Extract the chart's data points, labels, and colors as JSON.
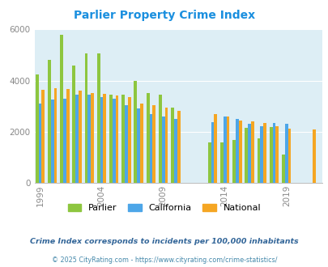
{
  "title": "Parlier Property Crime Index",
  "title_color": "#1a8fdf",
  "years": [
    1999,
    2000,
    2001,
    2002,
    2003,
    2004,
    2005,
    2006,
    2007,
    2008,
    2009,
    2010,
    2013,
    2014,
    2015,
    2016,
    2017,
    2018,
    2019,
    2021
  ],
  "parlier": [
    4250,
    4800,
    5800,
    4600,
    5050,
    5050,
    3450,
    3450,
    4000,
    3500,
    3450,
    2950,
    1580,
    1580,
    1680,
    2150,
    1750,
    2180,
    1100,
    null
  ],
  "california": [
    3100,
    3250,
    3300,
    3450,
    3450,
    3350,
    3300,
    3050,
    2900,
    2680,
    2600,
    2500,
    2380,
    2600,
    2500,
    2300,
    2200,
    2350,
    2300,
    null
  ],
  "national": [
    3650,
    3700,
    3680,
    3600,
    3500,
    3480,
    3430,
    3350,
    3100,
    3030,
    2950,
    2820,
    2700,
    2580,
    2450,
    2400,
    2350,
    2200,
    2120,
    2100
  ],
  "parlier_color": "#8dc63f",
  "california_color": "#4da6e8",
  "national_color": "#f5a623",
  "background_color": "#ddeef5",
  "ylim": [
    0,
    6000
  ],
  "yticks": [
    0,
    2000,
    4000,
    6000
  ],
  "xtick_labels": [
    "1999",
    "2004",
    "2009",
    "2014",
    "2019"
  ],
  "xtick_positions": [
    1999,
    2004,
    2009,
    2014,
    2019
  ],
  "subtitle": "Crime Index corresponds to incidents per 100,000 inhabitants",
  "footer": "© 2025 CityRating.com - https://www.cityrating.com/crime-statistics/",
  "subtitle_color": "#336699",
  "footer_color": "#4488aa",
  "legend_labels": [
    "Parlier",
    "California",
    "National"
  ]
}
